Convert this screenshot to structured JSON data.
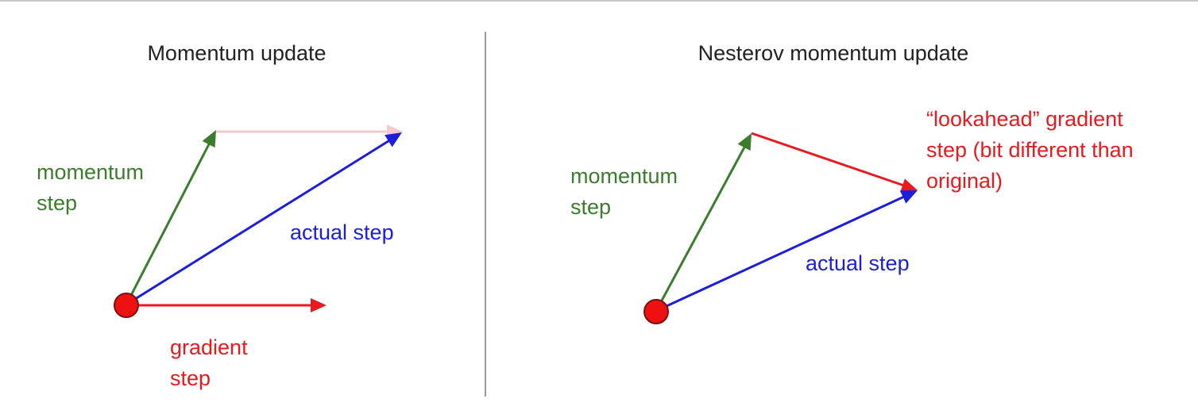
{
  "colors": {
    "momentum": "#3a7d2c",
    "gradient": "#e8191f",
    "actual": "#1d1ddc",
    "faded": "#f4c9cd",
    "point_fill": "#ee1111",
    "point_stroke": "#7a1010",
    "divider": "#9a9a9a",
    "top_rule": "#c8c8c8"
  },
  "left_panel": {
    "title": "Momentum update",
    "momentum_label": [
      "momentum",
      "step"
    ],
    "actual_label": "actual step",
    "gradient_label": [
      "gradient",
      "step"
    ]
  },
  "right_panel": {
    "title": "Nesterov momentum update",
    "momentum_label": [
      "momentum",
      "step"
    ],
    "actual_label": "actual step",
    "lookahead_label": [
      "“lookahead” gradient",
      "step (bit different than",
      "original)"
    ]
  }
}
